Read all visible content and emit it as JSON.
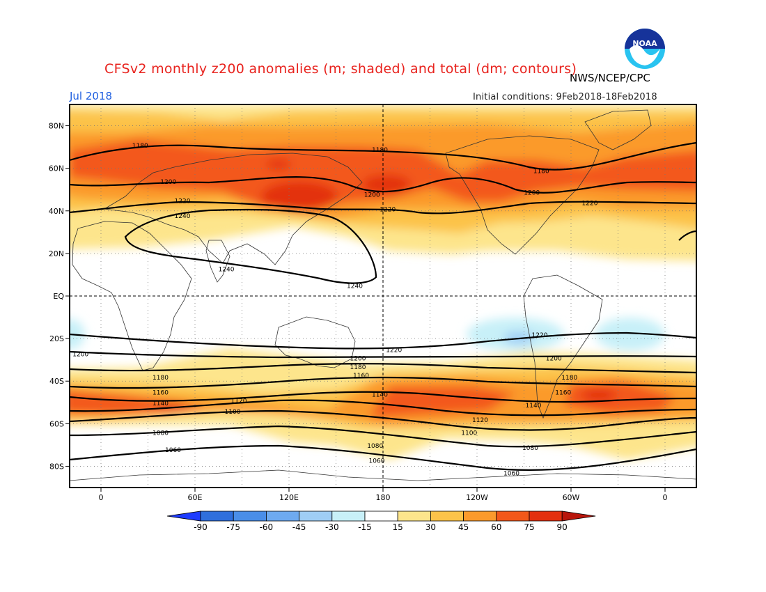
{
  "header": {
    "title": "CFSv2 monthly z200 anomalies (m; shaded) and total (dm; contours)",
    "agency": "NWS/NCEP/CPC",
    "month": "Jul 2018",
    "initial_conditions": "Initial conditions: 9Feb2018-18Feb2018",
    "logo_text": "NOAA"
  },
  "map": {
    "lat_labels": [
      "80N",
      "60N",
      "40N",
      "20N",
      "EQ",
      "20S",
      "40S",
      "60S",
      "80S"
    ],
    "lat_values": [
      80,
      60,
      40,
      20,
      0,
      -20,
      -40,
      -60,
      -80
    ],
    "lon_labels": [
      "0",
      "60E",
      "120E",
      "180",
      "120W",
      "60W",
      "0"
    ],
    "lon_values": [
      0,
      60,
      120,
      180,
      240,
      300,
      360
    ],
    "lon_range": [
      -20,
      380
    ],
    "lat_range": [
      -90,
      90
    ],
    "contour_labels": [
      {
        "text": "1180",
        "lon": 25,
        "lat": 71
      },
      {
        "text": "1180",
        "lon": 178,
        "lat": 69
      },
      {
        "text": "1180",
        "lon": 281,
        "lat": 59
      },
      {
        "text": "1200",
        "lon": 43,
        "lat": 54
      },
      {
        "text": "1200",
        "lon": 173,
        "lat": 48
      },
      {
        "text": "1200",
        "lon": 275,
        "lat": 49
      },
      {
        "text": "1220",
        "lon": 52,
        "lat": 45
      },
      {
        "text": "1220",
        "lon": 183,
        "lat": 41
      },
      {
        "text": "1220",
        "lon": 312,
        "lat": 44
      },
      {
        "text": "1240",
        "lon": 52,
        "lat": 38
      },
      {
        "text": "1240",
        "lon": 80,
        "lat": 13
      },
      {
        "text": "1240",
        "lon": 162,
        "lat": 5
      },
      {
        "text": "1220",
        "lon": 187,
        "lat": -25
      },
      {
        "text": "1220",
        "lon": 280,
        "lat": -18
      },
      {
        "text": "1200",
        "lon": -13,
        "lat": -27
      },
      {
        "text": "1200",
        "lon": 164,
        "lat": -29
      },
      {
        "text": "1200",
        "lon": 289,
        "lat": -29
      },
      {
        "text": "1180",
        "lon": 164,
        "lat": -33
      },
      {
        "text": "1180",
        "lon": 38,
        "lat": -38
      },
      {
        "text": "1180",
        "lon": 299,
        "lat": -38
      },
      {
        "text": "1160",
        "lon": 166,
        "lat": -37
      },
      {
        "text": "1160",
        "lon": 38,
        "lat": -45
      },
      {
        "text": "1160",
        "lon": 295,
        "lat": -45
      },
      {
        "text": "1140",
        "lon": 178,
        "lat": -46
      },
      {
        "text": "1140",
        "lon": 38,
        "lat": -50
      },
      {
        "text": "1140",
        "lon": 276,
        "lat": -51
      },
      {
        "text": "1120",
        "lon": 88,
        "lat": -49
      },
      {
        "text": "1120",
        "lon": 242,
        "lat": -58
      },
      {
        "text": "1100",
        "lon": 84,
        "lat": -54
      },
      {
        "text": "1100",
        "lon": 235,
        "lat": -64
      },
      {
        "text": "1080",
        "lon": 38,
        "lat": -64
      },
      {
        "text": "1080",
        "lon": 175,
        "lat": -70
      },
      {
        "text": "1080",
        "lon": 274,
        "lat": -71
      },
      {
        "text": "1060",
        "lon": 46,
        "lat": -72
      },
      {
        "text": "1060",
        "lon": 176,
        "lat": -77
      },
      {
        "text": "1060",
        "lon": 262,
        "lat": -83
      }
    ]
  },
  "colorbar": {
    "labels": [
      "-90",
      "-75",
      "-60",
      "-45",
      "-30",
      "-15",
      "15",
      "30",
      "45",
      "60",
      "75",
      "90"
    ],
    "colors": [
      "#1e3cff",
      "#2f6fdc",
      "#4a8ee8",
      "#6eaaf0",
      "#9fcdf4",
      "#c8f0f8",
      "#ffffff",
      "#fde58c",
      "#fcc34a",
      "#fb9a2c",
      "#f3581a",
      "#e3300f",
      "#b8160c"
    ]
  }
}
